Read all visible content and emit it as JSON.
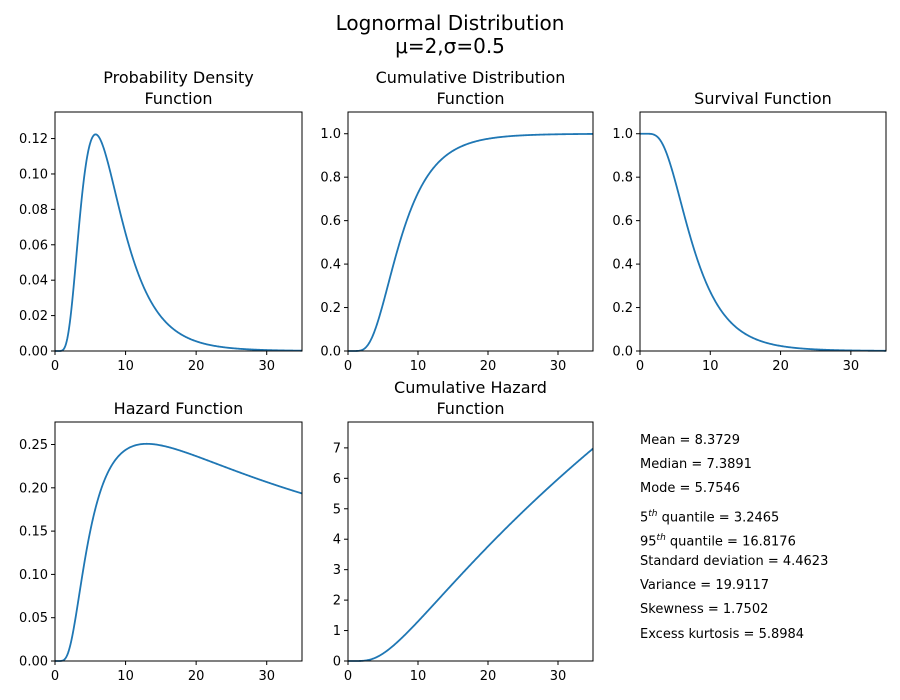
{
  "figure": {
    "title_line1": "Lognormal Distribution",
    "title_line2": "μ=2,σ=0.5"
  },
  "colors": {
    "line": "#1f77b4"
  },
  "distribution": {
    "mu": 2,
    "sigma": 0.5
  },
  "chart_data": [
    {
      "id": "pdf",
      "type": "line",
      "title": [
        "Probability Density",
        "Function"
      ],
      "xlabel": "",
      "ylabel": "",
      "xlim": [
        0,
        35
      ],
      "ylim": [
        0,
        0.135
      ],
      "xticks": [
        0,
        10,
        20,
        30
      ],
      "xtick_labels": [
        "0",
        "10",
        "20",
        "30"
      ],
      "yticks": [
        0,
        0.02,
        0.04,
        0.06,
        0.08,
        0.1,
        0.12
      ],
      "ytick_labels": [
        "0.00",
        "0.02",
        "0.04",
        "0.06",
        "0.08",
        "0.10",
        "0.12"
      ],
      "grid": false,
      "function": "pdf"
    },
    {
      "id": "cdf",
      "type": "line",
      "title": [
        "Cumulative Distribution",
        "Function"
      ],
      "xlabel": "",
      "ylabel": "",
      "xlim": [
        0,
        35
      ],
      "ylim": [
        0,
        1.1
      ],
      "xticks": [
        0,
        10,
        20,
        30
      ],
      "xtick_labels": [
        "0",
        "10",
        "20",
        "30"
      ],
      "yticks": [
        0,
        0.2,
        0.4,
        0.6,
        0.8,
        1.0
      ],
      "ytick_labels": [
        "0.0",
        "0.2",
        "0.4",
        "0.6",
        "0.8",
        "1.0"
      ],
      "grid": false,
      "function": "cdf"
    },
    {
      "id": "sf",
      "type": "line",
      "title": [
        "Survival Function"
      ],
      "xlabel": "",
      "ylabel": "",
      "xlim": [
        0,
        35
      ],
      "ylim": [
        0,
        1.1
      ],
      "xticks": [
        0,
        10,
        20,
        30
      ],
      "xtick_labels": [
        "0",
        "10",
        "20",
        "30"
      ],
      "yticks": [
        0,
        0.2,
        0.4,
        0.6,
        0.8,
        1.0
      ],
      "ytick_labels": [
        "0.0",
        "0.2",
        "0.4",
        "0.6",
        "0.8",
        "1.0"
      ],
      "grid": false,
      "function": "sf"
    },
    {
      "id": "hf",
      "type": "line",
      "title": [
        "Hazard Function"
      ],
      "xlabel": "",
      "ylabel": "",
      "xlim": [
        0,
        35
      ],
      "ylim": [
        0,
        0.276
      ],
      "xticks": [
        0,
        10,
        20,
        30
      ],
      "xtick_labels": [
        "0",
        "10",
        "20",
        "30"
      ],
      "yticks": [
        0,
        0.05,
        0.1,
        0.15,
        0.2,
        0.25
      ],
      "ytick_labels": [
        "0.00",
        "0.05",
        "0.10",
        "0.15",
        "0.20",
        "0.25"
      ],
      "grid": false,
      "function": "hf"
    },
    {
      "id": "chf",
      "type": "line",
      "title": [
        "Cumulative Hazard",
        "Function"
      ],
      "xlabel": "",
      "ylabel": "",
      "xlim": [
        0,
        35
      ],
      "ylim": [
        0,
        7.85
      ],
      "xticks": [
        0,
        10,
        20,
        30
      ],
      "xtick_labels": [
        "0",
        "10",
        "20",
        "30"
      ],
      "yticks": [
        0,
        1,
        2,
        3,
        4,
        5,
        6,
        7
      ],
      "ytick_labels": [
        "0",
        "1",
        "2",
        "3",
        "4",
        "5",
        "6",
        "7"
      ],
      "grid": false,
      "function": "chf"
    }
  ],
  "stats": {
    "mean": "Mean = 8.3729",
    "median": "Median = 7.3891",
    "mode": "Mode = 5.7546",
    "q5_prefix": "5",
    "q5_sup": "th",
    "q5_rest": " quantile = 3.2465",
    "q95_prefix": "95",
    "q95_sup": "th",
    "q95_rest": " quantile = 16.8176",
    "std": "Standard deviation = 4.4623",
    "variance": "Variance = 19.9117",
    "skewness": "Skewness = 1.7502",
    "kurtosis": "Excess kurtosis = 5.8984"
  }
}
